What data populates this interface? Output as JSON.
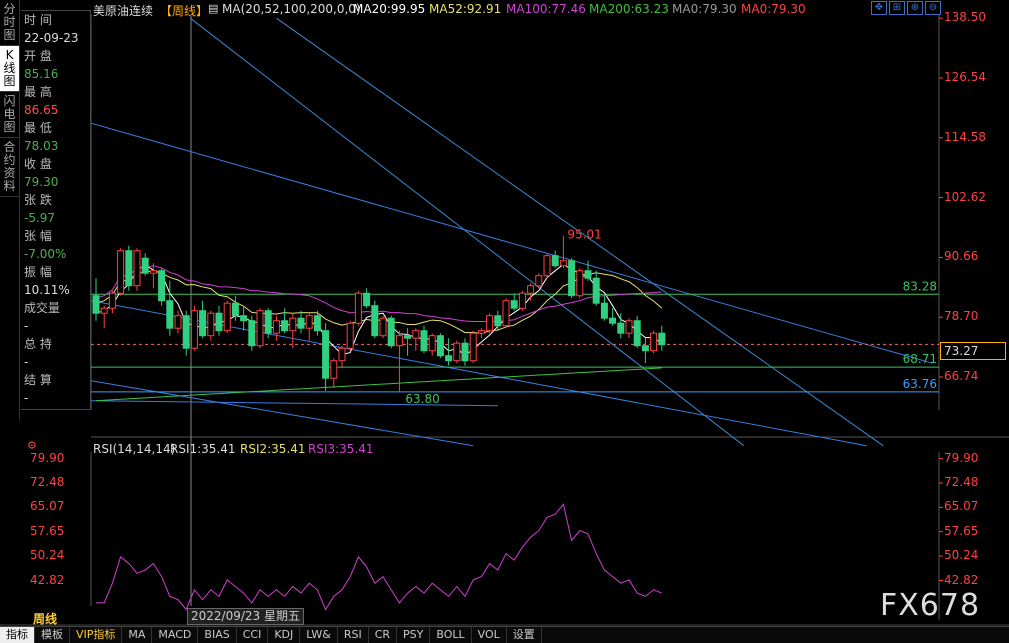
{
  "sidebar": {
    "tabs": [
      {
        "label": "分时图",
        "active": false
      },
      {
        "label": "K线图",
        "active": true
      },
      {
        "label": "闪电图",
        "active": false
      },
      {
        "label": "合约资料",
        "active": false
      }
    ]
  },
  "info_panel": {
    "time_label": "时 间",
    "time_value": "22-09-23",
    "open_label": "开 盘",
    "open_value": "85.16",
    "high_label": "最 高",
    "high_value": "86.65",
    "low_label": "最 低",
    "low_value": "78.03",
    "close_label": "收 盘",
    "close_value": "79.30",
    "change_label": "张 跌",
    "change_value": "-5.97",
    "pct_label": "张 幅",
    "pct_value": "-7.00%",
    "amp_label": "振 幅",
    "amp_value": "10.11%",
    "vol_label": "成交量",
    "vol_value": "-",
    "oi_label": "总 持",
    "oi_value": "-",
    "settle_label": "结 算",
    "settle_value": "-"
  },
  "header": {
    "title": "美原油连续",
    "period_tag": "【周线】",
    "ma_params": "MA(20,52,100,200,0,0)",
    "ma20": "MA20:99.95",
    "ma52": "MA52:92.91",
    "ma100": "MA100:77.46",
    "ma200": "MA200:63.23",
    "ma0a": "MA0:79.30",
    "ma0b": "MA0:79.30"
  },
  "colors": {
    "ma20": "#ffffff",
    "ma52": "#e8e070",
    "ma100": "#d040d0",
    "ma200": "#40c040",
    "up": "#ff4040",
    "down": "#30d080",
    "hline": "#3aa0ff"
  },
  "price_axis": [
    "138.50",
    "126.54",
    "114.58",
    "102.62",
    "90.66",
    "78.70",
    "66.74"
  ],
  "current_price": "73.27",
  "annotations": {
    "high": "95.01",
    "low": "63.80",
    "level1": "83.28",
    "level2": "68.71",
    "level3": "63.76"
  },
  "rsi": {
    "header": "RSI(14,14,14)",
    "rsi1": "RSI1:35.41",
    "rsi2": "RSI2:35.41",
    "rsi3": "RSI3:35.41",
    "axis": [
      "79.90",
      "72.48",
      "65.07",
      "57.65",
      "50.24",
      "42.82"
    ]
  },
  "period_label": "周线",
  "date_tip": "2022/09/23 星期五",
  "bottom_tabs": [
    "指标",
    "模板",
    "VIP指标",
    "MA",
    "MACD",
    "BIAS",
    "CCI",
    "KDJ",
    "LW&",
    "RSI",
    "CR",
    "PSY",
    "BOLL",
    "VOL",
    "设置"
  ],
  "watermark": "FX678",
  "chart_data": {
    "type": "candlestick",
    "period": "weekly",
    "ylim": [
      60.7,
      138.5
    ],
    "candles": [
      [
        83.0,
        86.5,
        78.0,
        79.5
      ],
      [
        79.5,
        81.0,
        76.5,
        80.5
      ],
      [
        80.5,
        84.0,
        79.5,
        83.5
      ],
      [
        83.5,
        92.5,
        83.0,
        92.0
      ],
      [
        92.0,
        93.0,
        84.0,
        85.0
      ],
      [
        85.0,
        92.5,
        84.0,
        92.0
      ],
      [
        90.5,
        91.5,
        87.0,
        87.5
      ],
      [
        87.5,
        89.5,
        84.5,
        88.0
      ],
      [
        88.0,
        88.5,
        81.0,
        82.0
      ],
      [
        82.0,
        86.0,
        75.0,
        76.5
      ],
      [
        76.5,
        80.0,
        75.5,
        79.0
      ],
      [
        79.0,
        80.0,
        71.0,
        72.5
      ],
      [
        72.5,
        81.0,
        72.0,
        80.0
      ],
      [
        80.0,
        82.0,
        74.5,
        75.0
      ],
      [
        75.0,
        80.0,
        74.0,
        79.5
      ],
      [
        79.5,
        81.0,
        75.0,
        76.0
      ],
      [
        76.0,
        82.0,
        75.5,
        81.5
      ],
      [
        81.5,
        83.0,
        78.0,
        79.0
      ],
      [
        79.0,
        81.0,
        76.0,
        78.0
      ],
      [
        78.0,
        79.0,
        72.0,
        73.0
      ],
      [
        73.0,
        80.5,
        72.5,
        80.0
      ],
      [
        80.0,
        80.5,
        74.5,
        75.5
      ],
      [
        75.5,
        79.0,
        74.0,
        78.0
      ],
      [
        78.0,
        80.5,
        75.5,
        76.0
      ],
      [
        76.0,
        79.5,
        72.5,
        78.5
      ],
      [
        78.5,
        80.0,
        75.5,
        76.5
      ],
      [
        76.5,
        79.5,
        74.0,
        79.0
      ],
      [
        79.0,
        80.0,
        75.0,
        76.0
      ],
      [
        76.0,
        77.5,
        64.0,
        66.5
      ],
      [
        66.5,
        70.5,
        64.5,
        70.0
      ],
      [
        70.0,
        73.0,
        68.5,
        72.5
      ],
      [
        72.5,
        78.0,
        72.0,
        77.5
      ],
      [
        77.5,
        84.0,
        77.0,
        83.5
      ],
      [
        83.5,
        84.5,
        80.5,
        81.0
      ],
      [
        81.0,
        82.0,
        74.5,
        75.0
      ],
      [
        75.0,
        79.0,
        74.5,
        78.5
      ],
      [
        78.5,
        79.0,
        72.5,
        73.0
      ],
      [
        73.0,
        76.0,
        63.8,
        75.0
      ],
      [
        75.0,
        76.5,
        71.0,
        74.5
      ],
      [
        74.5,
        76.5,
        72.0,
        76.0
      ],
      [
        76.0,
        77.0,
        71.5,
        72.0
      ],
      [
        72.0,
        75.5,
        71.0,
        75.0
      ],
      [
        75.0,
        75.5,
        70.5,
        71.0
      ],
      [
        71.0,
        74.5,
        69.0,
        70.0
      ],
      [
        70.0,
        74.0,
        69.5,
        73.5
      ],
      [
        73.5,
        74.5,
        69.0,
        70.0
      ],
      [
        70.0,
        76.0,
        69.5,
        75.5
      ],
      [
        75.5,
        76.5,
        74.5,
        76.0
      ],
      [
        76.0,
        79.5,
        75.5,
        79.0
      ],
      [
        79.0,
        80.0,
        76.0,
        77.0
      ],
      [
        77.0,
        82.5,
        76.5,
        82.0
      ],
      [
        82.0,
        83.5,
        80.0,
        80.5
      ],
      [
        80.5,
        84.0,
        80.0,
        83.5
      ],
      [
        83.5,
        85.5,
        82.0,
        85.0
      ],
      [
        85.0,
        87.5,
        84.5,
        87.0
      ],
      [
        87.0,
        91.5,
        86.5,
        91.0
      ],
      [
        91.0,
        92.0,
        88.5,
        89.0
      ],
      [
        89.0,
        95.01,
        88.5,
        90.0
      ],
      [
        90.0,
        90.5,
        82.5,
        83.0
      ],
      [
        83.0,
        88.5,
        82.5,
        88.0
      ],
      [
        88.0,
        90.0,
        86.0,
        86.5
      ],
      [
        86.5,
        88.0,
        81.0,
        81.5
      ],
      [
        81.5,
        83.0,
        78.0,
        78.5
      ],
      [
        78.5,
        80.5,
        77.0,
        77.5
      ],
      [
        77.5,
        79.5,
        74.5,
        75.5
      ],
      [
        75.5,
        78.5,
        74.5,
        78.0
      ],
      [
        78.0,
        79.0,
        72.5,
        73.0
      ],
      [
        73.0,
        74.5,
        69.5,
        72.0
      ],
      [
        72.0,
        76.0,
        71.5,
        75.5
      ],
      [
        75.5,
        77.0,
        72.0,
        73.2
      ]
    ],
    "rsi_values": [
      36,
      36,
      42,
      50,
      48,
      45,
      46,
      48,
      44,
      38,
      37,
      34,
      40,
      37,
      40,
      38,
      43,
      41,
      39,
      36,
      40,
      38,
      40,
      38,
      41,
      39,
      42,
      40,
      34,
      38,
      40,
      44,
      50,
      47,
      42,
      44,
      40,
      36,
      39,
      41,
      39,
      42,
      40,
      38,
      41,
      38,
      43,
      44,
      48,
      46,
      51,
      49,
      53,
      56,
      58,
      62,
      63,
      66,
      55,
      58,
      57,
      51,
      46,
      44,
      42,
      43,
      39,
      38,
      40,
      39
    ]
  }
}
